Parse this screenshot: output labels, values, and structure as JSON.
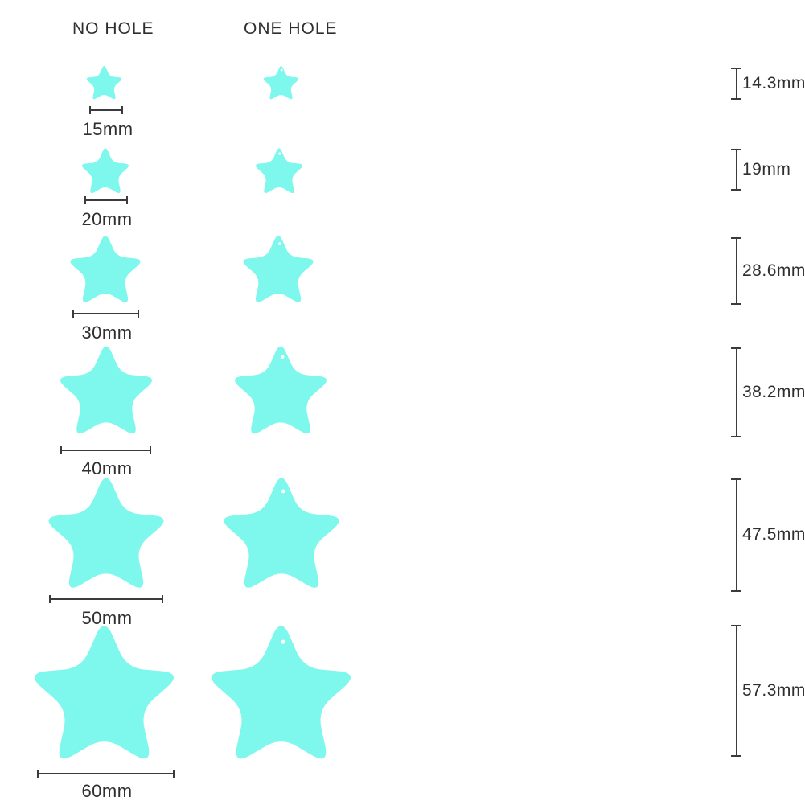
{
  "headers": {
    "no_hole": "NO HOLE",
    "one_hole": "ONE HOLE"
  },
  "rows": [
    {
      "width_label": "15mm",
      "height_label": "14.3mm",
      "width_mm": 15,
      "height_mm": 14.3
    },
    {
      "width_label": "20mm",
      "height_label": "19mm",
      "width_mm": 20,
      "height_mm": 19
    },
    {
      "width_label": "30mm",
      "height_label": "28.6mm",
      "width_mm": 30,
      "height_mm": 28.6
    },
    {
      "width_label": "40mm",
      "height_label": "38.2mm",
      "width_mm": 40,
      "height_mm": 38.2
    },
    {
      "width_label": "50mm",
      "height_label": "47.5mm",
      "width_mm": 50,
      "height_mm": 47.5
    },
    {
      "width_label": "60mm",
      "height_label": "57.3mm",
      "width_mm": 60,
      "height_mm": 57.3
    }
  ],
  "colors": {
    "star": "#7EF7EC",
    "line": "#3B3B3B",
    "text": "#2F2F2F",
    "background": "#FFFFFF"
  },
  "chart_data": {
    "type": "table",
    "title": "Star blank size chart",
    "columns": [
      "NO HOLE",
      "ONE HOLE"
    ],
    "sizes": [
      {
        "width_mm": 15,
        "height_mm": 14.3
      },
      {
        "width_mm": 20,
        "height_mm": 19
      },
      {
        "width_mm": 30,
        "height_mm": 28.6
      },
      {
        "width_mm": 40,
        "height_mm": 38.2
      },
      {
        "width_mm": 50,
        "height_mm": 47.5
      },
      {
        "width_mm": 60,
        "height_mm": 57.3
      }
    ]
  }
}
